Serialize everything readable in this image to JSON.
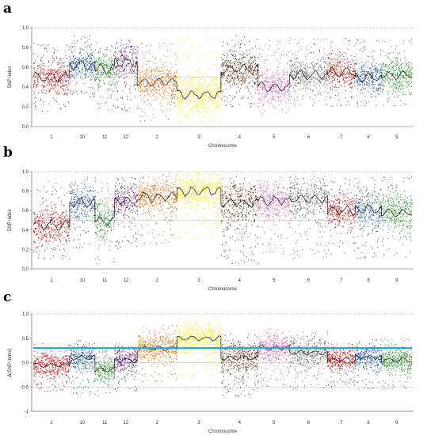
{
  "chart_data": [
    {
      "panel": "a",
      "type": "scatter",
      "xlabel": "Chromosome",
      "ylabel": "SNP index",
      "ylim": [
        0,
        1
      ],
      "yticks": [
        "0.0",
        "0.2",
        "0.4",
        "0.6",
        "0.8",
        "1.0"
      ],
      "ref_lines": [
        0.5,
        1.0
      ],
      "grid": false,
      "categories": [
        "1",
        "10",
        "11",
        "12",
        "2",
        "3",
        "4",
        "5",
        "6",
        "7",
        "8",
        "9"
      ],
      "colors": [
        "#dd1111",
        "#2255aa",
        "#229922",
        "#6a1f8a",
        "#ff6a00",
        "#ffee00",
        "#6b3010",
        "#ee55bb",
        "#6e6e6e",
        "#dd1111",
        "#2255aa",
        "#229922"
      ],
      "sizes": [
        43,
        30,
        23,
        27,
        47,
        52,
        44,
        37,
        45,
        33,
        31,
        36
      ],
      "lower": [
        0.15,
        0.3,
        0.15,
        0.15,
        0.05,
        0.02,
        0.2,
        0.12,
        0.2,
        0.2,
        0.2,
        0.2
      ],
      "upper": [
        0.85,
        0.92,
        0.85,
        0.9,
        0.85,
        0.9,
        0.92,
        0.88,
        0.9,
        0.9,
        0.88,
        0.88
      ],
      "trend": [
        0.5,
        0.62,
        0.58,
        0.65,
        0.45,
        0.32,
        0.58,
        0.4,
        0.52,
        0.55,
        0.5,
        0.52
      ]
    },
    {
      "panel": "b",
      "type": "scatter",
      "xlabel": "Chromosome",
      "ylabel": "SNP index",
      "ylim": [
        0,
        1
      ],
      "yticks": [
        "0.0",
        "0.2",
        "0.4",
        "0.6",
        "0.8",
        "1.0"
      ],
      "ref_lines": [
        0.5,
        1.0
      ],
      "grid": false,
      "categories": [
        "1",
        "10",
        "11",
        "12",
        "2",
        "3",
        "4",
        "5",
        "6",
        "7",
        "8",
        "9"
      ],
      "colors": [
        "#dd1111",
        "#2255aa",
        "#229922",
        "#6a1f8a",
        "#ff6a00",
        "#ffee00",
        "#6b3010",
        "#ee55bb",
        "#6e6e6e",
        "#dd1111",
        "#2255aa",
        "#229922"
      ],
      "sizes": [
        43,
        30,
        23,
        27,
        47,
        52,
        44,
        37,
        45,
        33,
        31,
        36
      ],
      "lower": [
        0.1,
        0.2,
        0.05,
        0.2,
        0.25,
        0.3,
        0.05,
        0.15,
        0.1,
        0.15,
        0.1,
        0.1
      ],
      "upper": [
        0.9,
        0.95,
        0.9,
        0.95,
        0.98,
        0.98,
        0.95,
        0.95,
        0.95,
        0.95,
        0.95,
        0.95
      ],
      "trend": [
        0.45,
        0.68,
        0.5,
        0.7,
        0.75,
        0.8,
        0.68,
        0.7,
        0.72,
        0.6,
        0.62,
        0.58
      ]
    },
    {
      "panel": "c",
      "type": "scatter",
      "xlabel": "Chromosome",
      "ylabel": "Δ(SNP index)",
      "ylim": [
        -1,
        1
      ],
      "yticks": [
        "-1",
        "-0.5",
        "0.0",
        "0.5",
        "1.0"
      ],
      "ref_lines": [
        -1,
        -0.5,
        0.0,
        1.0
      ],
      "grid": false,
      "threshold": 0.3,
      "threshold_color": "#22aadd",
      "categories": [
        "1",
        "10",
        "11",
        "12",
        "2",
        "3",
        "4",
        "5",
        "6",
        "7",
        "8",
        "9"
      ],
      "colors": [
        "#dd1111",
        "#2255aa",
        "#229922",
        "#6a1f8a",
        "#ff6a00",
        "#ffee00",
        "#6b3010",
        "#ee55bb",
        "#6e6e6e",
        "#dd1111",
        "#2255aa",
        "#229922"
      ],
      "sizes": [
        43,
        30,
        23,
        27,
        47,
        52,
        44,
        37,
        45,
        33,
        31,
        36
      ],
      "lower": [
        -0.6,
        -0.65,
        -0.7,
        -0.6,
        -0.4,
        -0.3,
        -0.7,
        -0.5,
        -0.55,
        -0.5,
        -0.55,
        -0.55
      ],
      "upper": [
        0.4,
        0.45,
        0.3,
        0.35,
        0.8,
        0.9,
        0.6,
        0.7,
        0.65,
        0.4,
        0.5,
        0.5
      ],
      "trend": [
        -0.05,
        0.1,
        -0.15,
        0.05,
        0.3,
        0.5,
        0.1,
        0.3,
        0.2,
        0.05,
        0.12,
        0.05
      ]
    }
  ]
}
